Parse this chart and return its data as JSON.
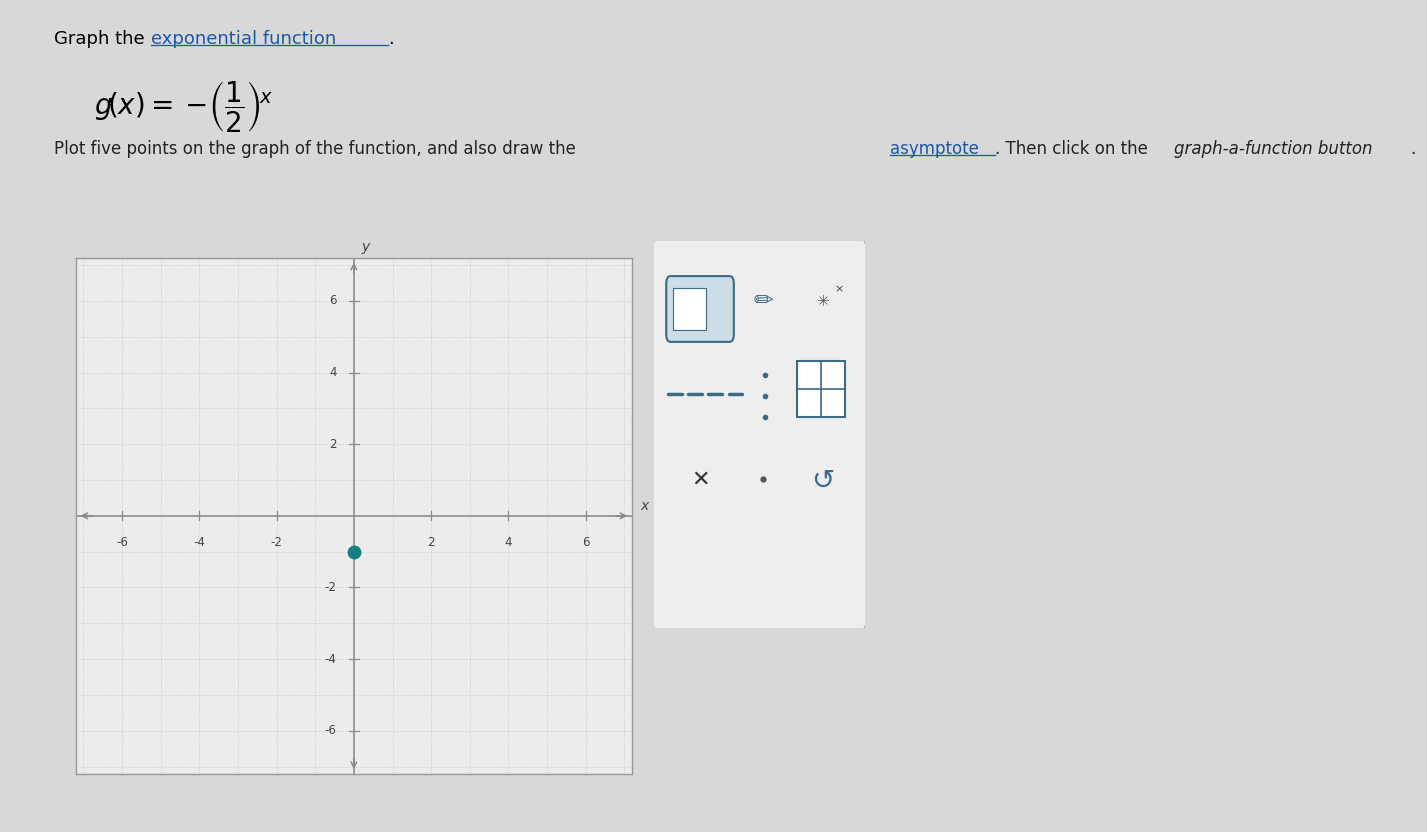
{
  "xlim": [
    -7.2,
    7.2
  ],
  "ylim": [
    -7.2,
    7.2
  ],
  "xtick_labels": [
    -6,
    -4,
    -2,
    2,
    4,
    6
  ],
  "ytick_labels": [
    -6,
    -4,
    -2,
    2,
    4,
    6
  ],
  "grid_color": "#bbbbbb",
  "axis_color": "#888888",
  "plot_bg": "#ececec",
  "outer_bg": "#d8d8d8",
  "point_color": "#148080",
  "point_x": 0,
  "point_y": -1,
  "panel_bg": "#e4e4e4",
  "panel_border": "#aaaaaa",
  "link_color": "#1a56aa",
  "subtitle_color": "#222222"
}
